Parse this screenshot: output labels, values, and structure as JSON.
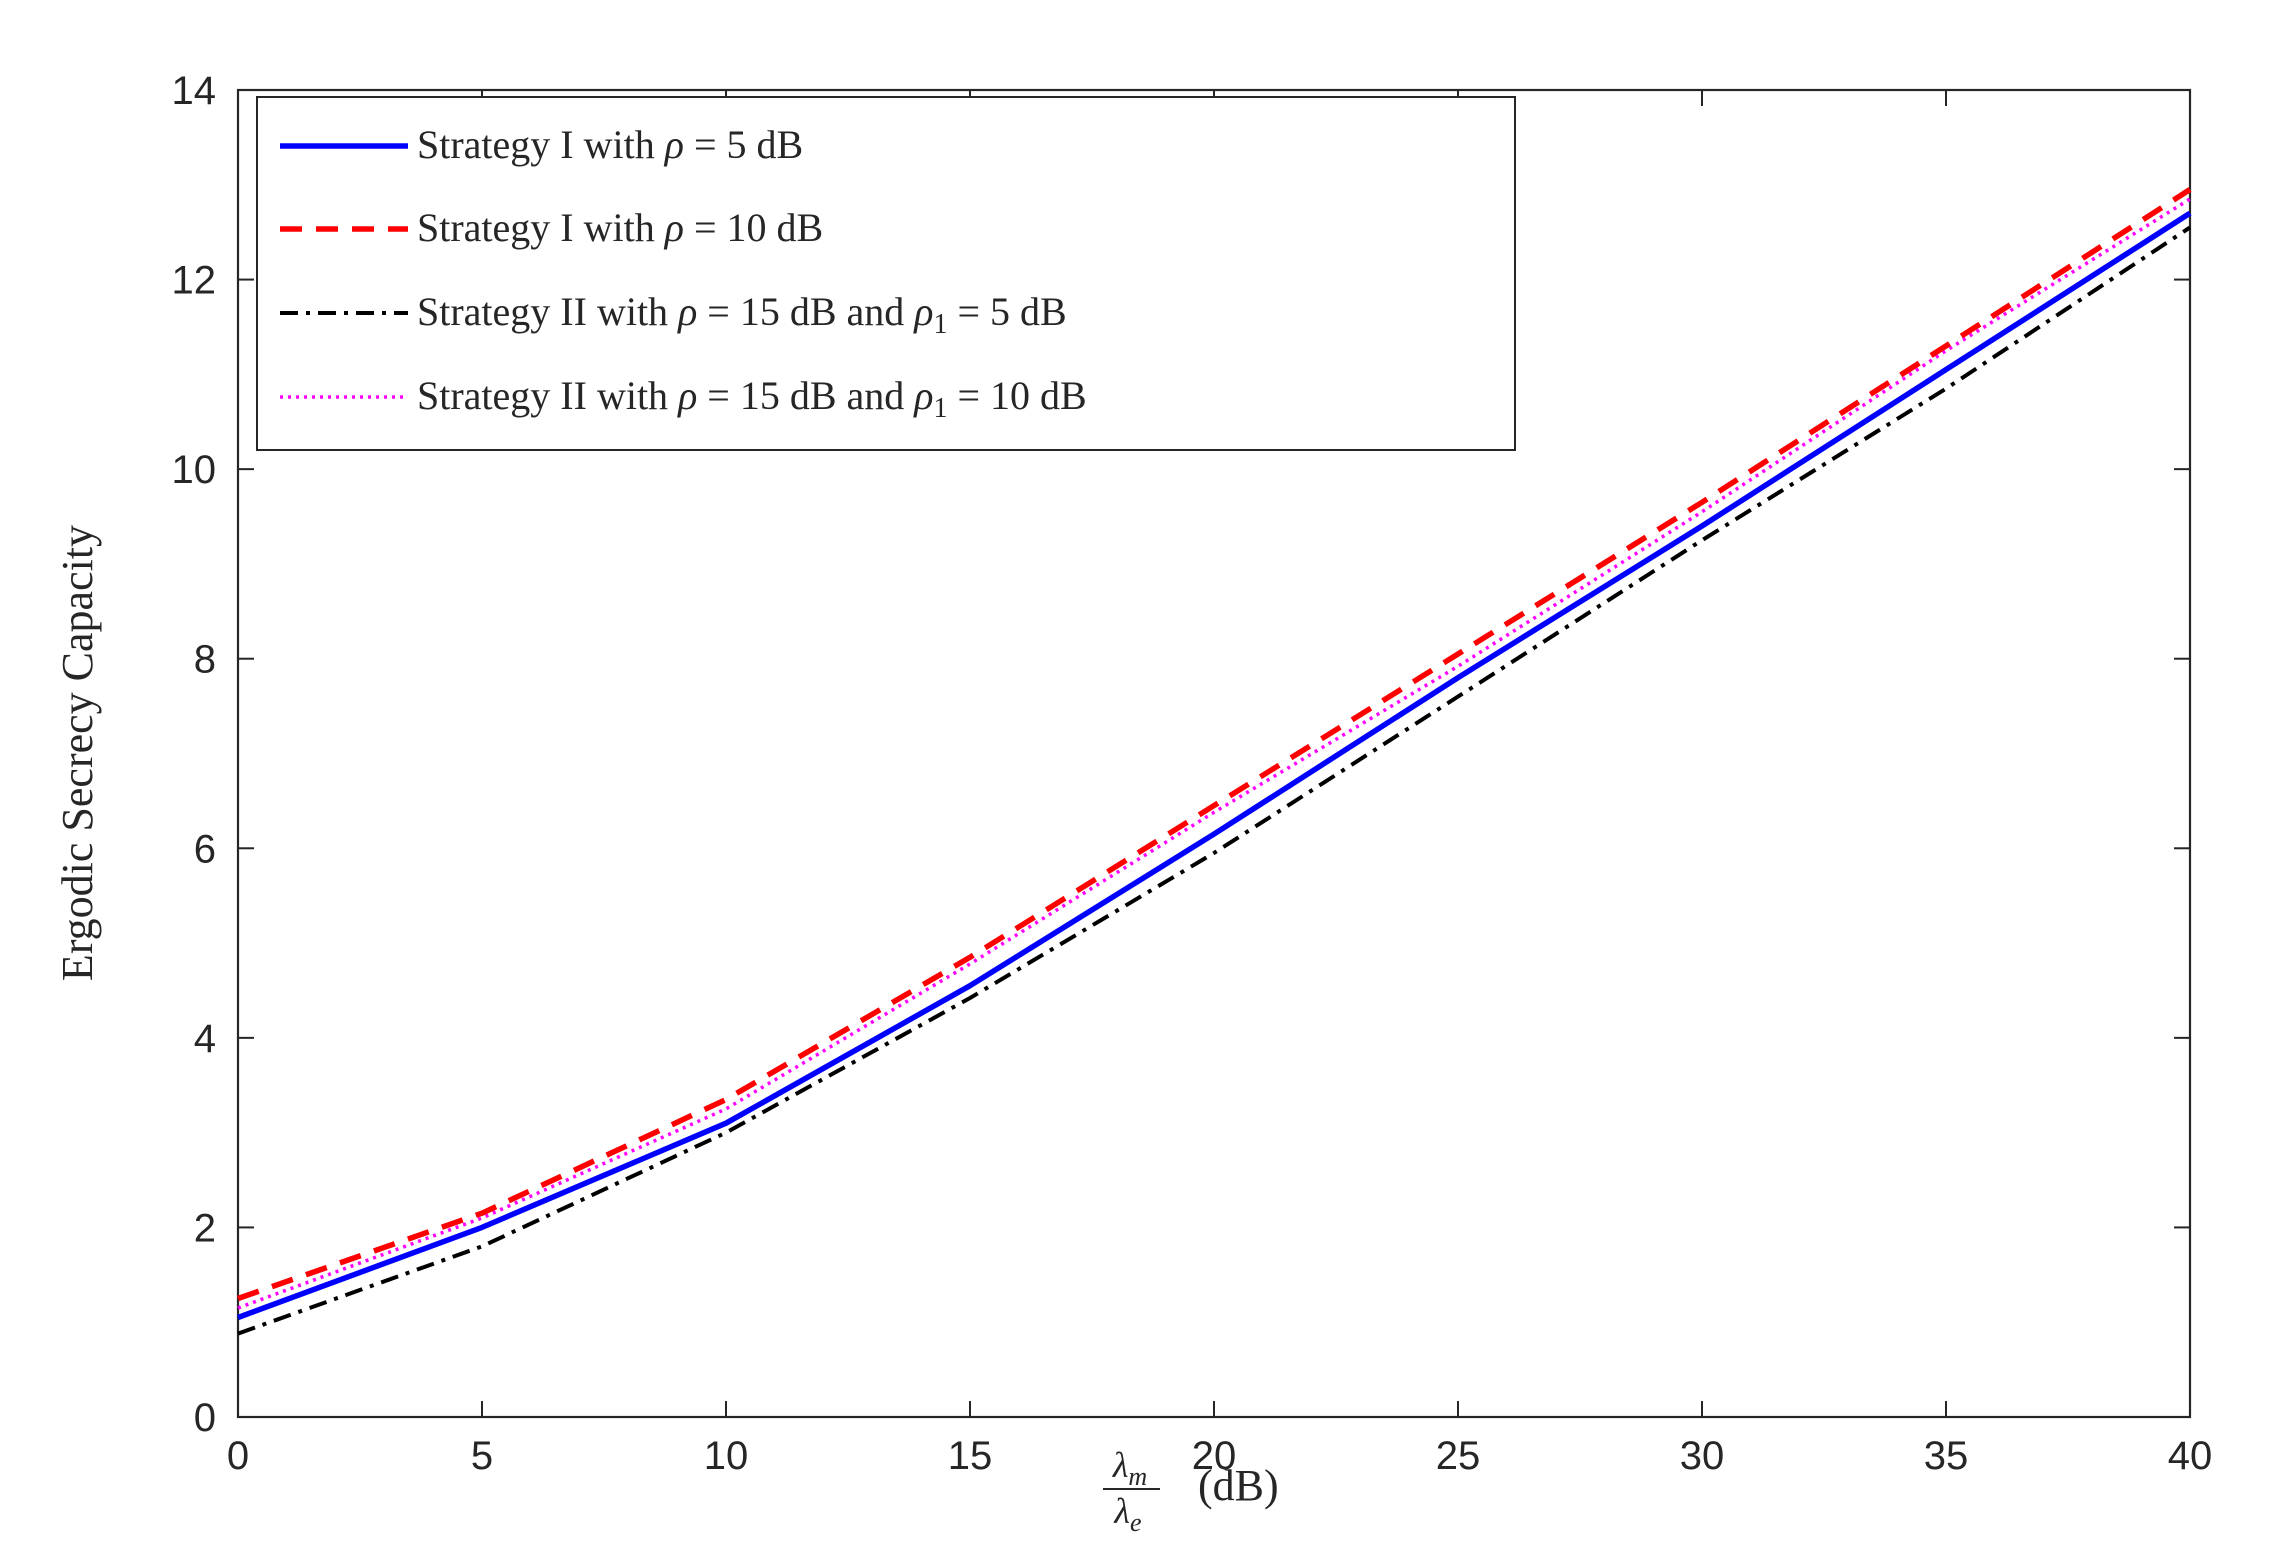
{
  "chart_data": {
    "type": "line",
    "title": "",
    "xlabel": {
      "fraction_numerator": "λ",
      "fraction_numerator_sub": "m",
      "fraction_denominator": "λ",
      "fraction_denominator_sub": "e",
      "unit": "(dB)"
    },
    "ylabel": "Ergodic Secrecy Capacity",
    "xlim": [
      0,
      40
    ],
    "ylim": [
      0,
      14
    ],
    "xticks": [
      0,
      5,
      10,
      15,
      20,
      25,
      30,
      35,
      40
    ],
    "yticks": [
      0,
      2,
      4,
      6,
      8,
      10,
      12,
      14
    ],
    "xtick_labels": [
      "0",
      "5",
      "10",
      "15",
      "20",
      "25",
      "30",
      "35",
      "40"
    ],
    "ytick_labels": [
      "0",
      "2",
      "4",
      "6",
      "8",
      "10",
      "12",
      "14"
    ],
    "grid": false,
    "legend_position": "top-left",
    "x": [
      0,
      5,
      10,
      15,
      20,
      25,
      30,
      35,
      40
    ],
    "series": [
      {
        "name": "Strategy I with ρ = 5 dB",
        "legend": {
          "prefix": "Strategy I with ",
          "symbol": "ρ",
          "suffix": " = 5 dB"
        },
        "color": "#0000ff",
        "style": "solid",
        "values": [
          1.05,
          2.0,
          3.1,
          4.55,
          6.15,
          7.8,
          9.4,
          11.05,
          12.7
        ]
      },
      {
        "name": "Strategy I with ρ = 10 dB",
        "legend": {
          "prefix": "Strategy I with ",
          "symbol": "ρ",
          "suffix": " = 10 dB"
        },
        "color": "#ff0000",
        "style": "dashed",
        "values": [
          1.25,
          2.15,
          3.35,
          4.85,
          6.45,
          8.05,
          9.65,
          11.3,
          12.95
        ]
      },
      {
        "name": "Strategy II with ρ = 15 dB and ρ1 = 5 dB",
        "legend": {
          "prefix": "Strategy II with ",
          "symbol": "ρ",
          "middle": " = 15 dB and ",
          "symbol2": "ρ",
          "symbol2_sub": "1",
          "suffix": " = 5 dB"
        },
        "color": "#000000",
        "style": "dashdot",
        "values": [
          0.88,
          1.8,
          3.0,
          4.42,
          5.95,
          7.6,
          9.25,
          10.85,
          12.55
        ]
      },
      {
        "name": "Strategy II with ρ = 15 dB and ρ1 = 10 dB",
        "legend": {
          "prefix": "Strategy II with ",
          "symbol": "ρ",
          "middle": " = 15 dB and ",
          "symbol2": "ρ",
          "symbol2_sub": "1",
          "suffix": " = 10 dB"
        },
        "color": "#ff00ff",
        "style": "dotted",
        "values": [
          1.15,
          2.1,
          3.25,
          4.78,
          6.38,
          7.92,
          9.55,
          11.25,
          12.85
        ]
      }
    ]
  }
}
